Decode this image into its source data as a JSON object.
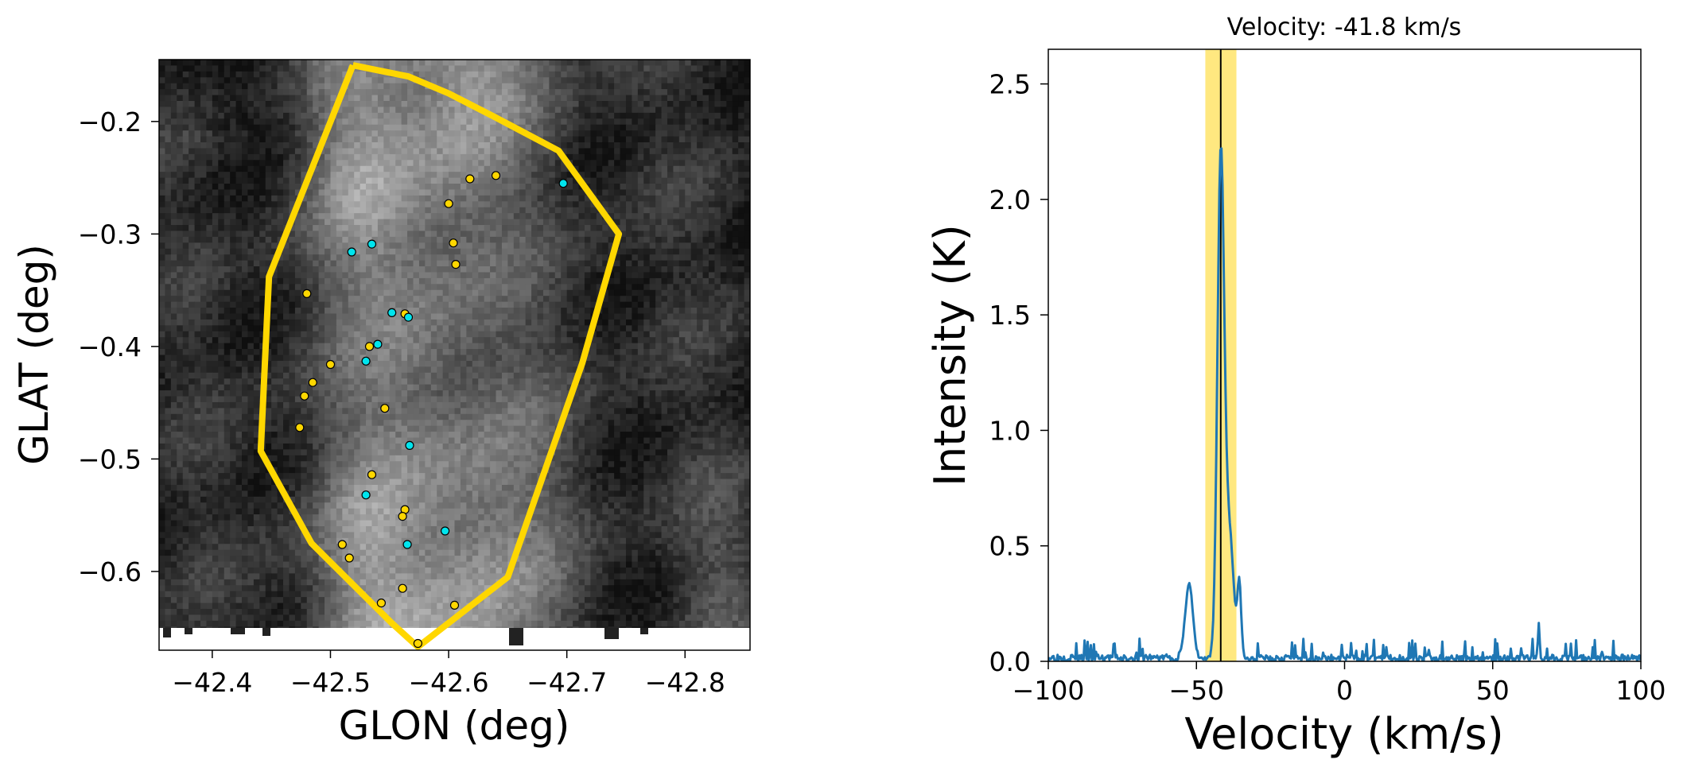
{
  "chart_data": [
    {
      "type": "image",
      "title": "",
      "xlabel": "GLON (deg)",
      "ylabel": "GLAT (deg)",
      "xlim": [
        -42.355,
        -42.855
      ],
      "ylim": [
        -0.67,
        -0.145
      ],
      "xticks": [
        {
          "value": -42.4,
          "label": "−42.4"
        },
        {
          "value": -42.5,
          "label": "−42.5"
        },
        {
          "value": -42.6,
          "label": "−42.6"
        },
        {
          "value": -42.7,
          "label": "−42.7"
        },
        {
          "value": -42.8,
          "label": "−42.8"
        }
      ],
      "yticks": [
        {
          "value": -0.2,
          "label": "−0.2"
        },
        {
          "value": -0.3,
          "label": "−0.3"
        },
        {
          "value": -0.4,
          "label": "−0.4"
        },
        {
          "value": -0.5,
          "label": "−0.5"
        },
        {
          "value": -0.6,
          "label": "−0.6"
        }
      ],
      "colormap": "gray",
      "polygon_color": "#ffd700",
      "polygon": [
        [
          -42.519,
          -0.15
        ],
        [
          -42.566,
          -0.16
        ],
        [
          -42.6,
          -0.175
        ],
        [
          -42.639,
          -0.196
        ],
        [
          -42.693,
          -0.226
        ],
        [
          -42.744,
          -0.3
        ],
        [
          -42.713,
          -0.415
        ],
        [
          -42.65,
          -0.605
        ],
        [
          -42.574,
          -0.667
        ],
        [
          -42.552,
          -0.646
        ],
        [
          -42.484,
          -0.575
        ],
        [
          -42.441,
          -0.493
        ],
        [
          -42.448,
          -0.338
        ],
        [
          -42.519,
          -0.15
        ]
      ],
      "series": [
        {
          "marker_color": "#ffd700",
          "points": [
            [
              -42.64,
              -0.248
            ],
            [
              -42.618,
              -0.251
            ],
            [
              -42.6,
              -0.273
            ],
            [
              -42.604,
              -0.308
            ],
            [
              -42.606,
              -0.327
            ],
            [
              -42.48,
              -0.353
            ],
            [
              -42.563,
              -0.371
            ],
            [
              -42.533,
              -0.4
            ],
            [
              -42.5,
              -0.416
            ],
            [
              -42.485,
              -0.432
            ],
            [
              -42.474,
              -0.472
            ],
            [
              -42.478,
              -0.444
            ],
            [
              -42.546,
              -0.455
            ],
            [
              -42.535,
              -0.514
            ],
            [
              -42.563,
              -0.545
            ],
            [
              -42.561,
              -0.551
            ],
            [
              -42.51,
              -0.576
            ],
            [
              -42.516,
              -0.588
            ],
            [
              -42.561,
              -0.615
            ],
            [
              -42.543,
              -0.628
            ],
            [
              -42.605,
              -0.63
            ],
            [
              -42.574,
              -0.664
            ]
          ]
        },
        {
          "marker_color": "#00e5ee",
          "points": [
            [
              -42.697,
              -0.255
            ],
            [
              -42.518,
              -0.316
            ],
            [
              -42.535,
              -0.309
            ],
            [
              -42.552,
              -0.37
            ],
            [
              -42.566,
              -0.374
            ],
            [
              -42.54,
              -0.398
            ],
            [
              -42.53,
              -0.413
            ],
            [
              -42.567,
              -0.488
            ],
            [
              -42.53,
              -0.532
            ],
            [
              -42.597,
              -0.564
            ],
            [
              -42.565,
              -0.576
            ]
          ]
        }
      ]
    },
    {
      "type": "line",
      "title": "Velocity: -41.8 km/s",
      "xlabel": "Velocity (km/s)",
      "ylabel": "Intensity (K)",
      "xlim": [
        -100,
        100
      ],
      "ylim": [
        0,
        2.65
      ],
      "xticks": [
        {
          "value": -100,
          "label": "−100"
        },
        {
          "value": -50,
          "label": "−50"
        },
        {
          "value": 0,
          "label": "0"
        },
        {
          "value": 50,
          "label": "50"
        },
        {
          "value": 100,
          "label": "100"
        }
      ],
      "yticks": [
        {
          "value": 0,
          "label": "0.0"
        },
        {
          "value": 0.5,
          "label": "0.5"
        },
        {
          "value": 1,
          "label": "1.0"
        },
        {
          "value": 1.5,
          "label": "1.5"
        },
        {
          "value": 2,
          "label": "2.0"
        },
        {
          "value": 2.5,
          "label": "2.5"
        }
      ],
      "line_color": "#1f77b4",
      "band": {
        "from": -47.0,
        "to": -36.5,
        "color": "#ffe880"
      },
      "vline": -41.8,
      "peaks": [
        {
          "x": -52.5,
          "y": 0.37
        },
        {
          "x": -41.8,
          "y": 2.12
        },
        {
          "x": -35.5,
          "y": 0.35
        },
        {
          "x": 65.5,
          "y": 0.15
        }
      ]
    }
  ]
}
